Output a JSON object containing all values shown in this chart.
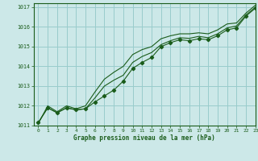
{
  "title": "Graphe pression niveau de la mer (hPa)",
  "bg_color": "#cce8e8",
  "grid_color": "#99cccc",
  "line_color": "#1a5c1a",
  "xlim": [
    -0.5,
    23
  ],
  "ylim": [
    1011,
    1017.2
  ],
  "xticks": [
    0,
    1,
    2,
    3,
    4,
    5,
    6,
    7,
    8,
    9,
    10,
    11,
    12,
    13,
    14,
    15,
    16,
    17,
    18,
    19,
    20,
    21,
    22,
    23
  ],
  "yticks": [
    1011,
    1012,
    1013,
    1014,
    1015,
    1016,
    1017
  ],
  "series1_x": [
    0,
    1,
    2,
    3,
    4,
    5,
    6,
    7,
    8,
    9,
    10,
    11,
    12,
    13,
    14,
    15,
    16,
    17,
    18,
    19,
    20,
    21,
    22,
    23
  ],
  "series1_y": [
    1011.15,
    1011.9,
    1011.65,
    1011.9,
    1011.8,
    1011.85,
    1012.2,
    1012.5,
    1012.8,
    1013.25,
    1013.9,
    1014.2,
    1014.45,
    1015.0,
    1015.2,
    1015.35,
    1015.3,
    1015.4,
    1015.35,
    1015.55,
    1015.85,
    1015.95,
    1016.55,
    1016.95
  ],
  "series2_x": [
    0,
    1,
    2,
    3,
    4,
    5,
    6,
    7,
    8,
    9,
    10,
    11,
    12,
    13,
    14,
    15,
    16,
    17,
    18,
    19,
    20,
    21,
    22,
    23
  ],
  "series2_y": [
    1011.15,
    1011.9,
    1011.65,
    1011.9,
    1011.8,
    1011.85,
    1012.4,
    1013.0,
    1013.3,
    1013.55,
    1014.2,
    1014.5,
    1014.7,
    1015.1,
    1015.3,
    1015.45,
    1015.42,
    1015.52,
    1015.45,
    1015.65,
    1015.95,
    1016.05,
    1016.6,
    1017.0
  ],
  "series3_x": [
    0,
    1,
    2,
    3,
    4,
    5,
    6,
    7,
    8,
    9,
    10,
    11,
    12,
    13,
    14,
    15,
    16,
    17,
    18,
    19,
    20,
    21,
    22,
    23
  ],
  "series3_y": [
    1011.1,
    1012.0,
    1011.7,
    1012.0,
    1011.85,
    1012.0,
    1012.7,
    1013.35,
    1013.7,
    1014.0,
    1014.6,
    1014.85,
    1015.0,
    1015.4,
    1015.55,
    1015.65,
    1015.65,
    1015.7,
    1015.65,
    1015.85,
    1016.15,
    1016.2,
    1016.7,
    1017.1
  ]
}
